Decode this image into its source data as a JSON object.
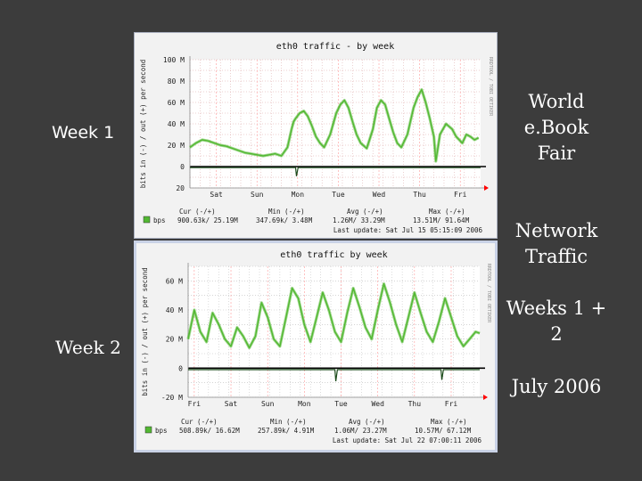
{
  "slide": {
    "week1_label": "Week 1",
    "week2_label": "Week 2",
    "side_blocks": [
      "World e.Book Fair",
      "Network Traffic",
      "Weeks 1 + 2",
      "July 2006"
    ]
  },
  "chart_data": [
    {
      "type": "line",
      "title": "eth0 traffic - by week",
      "ylabel": "bits in (-) / out (+) per second",
      "side_tag": "RRDTOOL / TOBI OETIKER",
      "ylim": [
        -20,
        100
      ],
      "y_ticks": [
        -20,
        0,
        20,
        40,
        60,
        80,
        100
      ],
      "y_tick_labels": [
        "20",
        "0",
        "20 M",
        "40 M",
        "60 M",
        "80 M",
        "100 M"
      ],
      "x_range": [
        0,
        7.15
      ],
      "x_tick_labels": [
        "Sat",
        "Sun",
        "Mon",
        "Tue",
        "Wed",
        "Thu",
        "Fri"
      ],
      "x_tick_positions": [
        0.65,
        1.65,
        2.65,
        3.65,
        4.65,
        5.65,
        6.65
      ],
      "grid": true,
      "colors": {
        "out": "#52b832",
        "in": "#1a4a1a",
        "zero": "#000000",
        "grid": "#d9a0a0",
        "axis_arrow": "#ff0000"
      },
      "series": [
        {
          "name": "bps",
          "key": "out",
          "x": [
            0,
            0.15,
            0.3,
            0.45,
            0.6,
            0.75,
            0.9,
            1.05,
            1.2,
            1.35,
            1.5,
            1.65,
            1.8,
            1.95,
            2.1,
            2.25,
            2.4,
            2.5,
            2.55,
            2.6,
            2.7,
            2.8,
            2.9,
            3.0,
            3.1,
            3.2,
            3.3,
            3.45,
            3.6,
            3.7,
            3.8,
            3.9,
            4.0,
            4.1,
            4.2,
            4.35,
            4.5,
            4.6,
            4.7,
            4.8,
            4.9,
            5.0,
            5.1,
            5.2,
            5.35,
            5.5,
            5.6,
            5.7,
            5.8,
            5.9,
            6.0,
            6.05,
            6.15,
            6.3,
            6.45,
            6.55,
            6.7,
            6.8,
            6.9,
            7.0,
            7.1
          ],
          "y": [
            18,
            22,
            25,
            24,
            22,
            20,
            19,
            17,
            15,
            13,
            12,
            11,
            10,
            11,
            12,
            10,
            18,
            35,
            42,
            45,
            50,
            52,
            47,
            38,
            28,
            22,
            18,
            30,
            50,
            58,
            62,
            55,
            42,
            30,
            22,
            17,
            35,
            55,
            62,
            58,
            45,
            32,
            22,
            18,
            30,
            55,
            65,
            72,
            60,
            45,
            28,
            5,
            30,
            40,
            35,
            28,
            22,
            30,
            28,
            25,
            27
          ]
        },
        {
          "name": "in",
          "key": "in",
          "x": [
            0,
            2.6,
            2.62,
            2.66,
            7.15
          ],
          "y": [
            -1,
            -1,
            -9,
            -1,
            -1
          ]
        }
      ],
      "legend": {
        "label": "bps",
        "cur_label": "Cur (-/+)",
        "min_label": "Min (-/+)",
        "avg_label": "Avg (-/+)",
        "max_label": "Max (-/+)",
        "cur": "900.63k/ 25.19M",
        "min": "347.69k/ 3.48M",
        "avg": "1.26M/ 33.29M",
        "max": "13.51M/ 91.64M",
        "last_update": "Last update: Sat Jul 15 05:15:09 2006"
      }
    },
    {
      "type": "line",
      "title": "eth0 traffic  by week",
      "ylabel": "bits in (-) / out (+) per second",
      "side_tag": "RRDTOOL / TOBI OETIKER",
      "ylim": [
        -20,
        70
      ],
      "y_ticks": [
        -20,
        0,
        20,
        40,
        60
      ],
      "y_tick_labels": [
        "-20 M",
        "0",
        "20 M",
        "40 M",
        "60 M"
      ],
      "x_range": [
        0,
        7.15
      ],
      "x_tick_labels": [
        "Fri",
        "Sat",
        "Sun",
        "Mon",
        "Tue",
        "Wed",
        "Thu",
        "Fri"
      ],
      "x_tick_positions": [
        0.15,
        1.05,
        1.95,
        2.85,
        3.75,
        4.65,
        5.55,
        6.45
      ],
      "grid": true,
      "colors": {
        "out": "#52b832",
        "in": "#1a4a1a",
        "zero": "#000000",
        "grid": "#bbbbbb",
        "axis_arrow": "#ff0000"
      },
      "series": [
        {
          "name": "bps",
          "key": "out",
          "x": [
            0,
            0.15,
            0.3,
            0.45,
            0.6,
            0.75,
            0.9,
            1.05,
            1.2,
            1.35,
            1.5,
            1.65,
            1.8,
            1.95,
            2.1,
            2.25,
            2.4,
            2.55,
            2.7,
            2.85,
            3.0,
            3.15,
            3.3,
            3.45,
            3.6,
            3.75,
            3.9,
            4.05,
            4.2,
            4.35,
            4.5,
            4.65,
            4.8,
            4.95,
            5.1,
            5.25,
            5.4,
            5.55,
            5.7,
            5.85,
            6.0,
            6.15,
            6.3,
            6.45,
            6.6,
            6.75,
            6.9,
            7.05,
            7.15
          ],
          "y": [
            20,
            40,
            25,
            18,
            38,
            30,
            20,
            15,
            28,
            22,
            14,
            22,
            45,
            35,
            20,
            15,
            35,
            55,
            48,
            30,
            18,
            35,
            52,
            40,
            25,
            18,
            38,
            55,
            42,
            28,
            20,
            40,
            58,
            45,
            30,
            18,
            35,
            52,
            38,
            25,
            18,
            32,
            48,
            35,
            22,
            15,
            20,
            25,
            24
          ]
        },
        {
          "name": "in",
          "key": "in",
          "x": [
            0,
            3.6,
            3.62,
            3.66,
            6.2,
            6.22,
            6.26,
            7.15
          ],
          "y": [
            -1,
            -1,
            -9,
            -1,
            -1,
            -8,
            -1,
            -1
          ]
        }
      ],
      "legend": {
        "label": "bps",
        "cur_label": "Cur (-/+)",
        "min_label": "Min (-/+)",
        "avg_label": "Avg (-/+)",
        "max_label": "Max (-/+)",
        "cur": "508.89k/ 16.62M",
        "min": "257.89k/ 4.91M",
        "avg": "1.06M/ 23.27M",
        "max": "10.57M/ 67.12M",
        "last_update": "Last update: Sat Jul 22 07:00:11 2006"
      }
    }
  ]
}
